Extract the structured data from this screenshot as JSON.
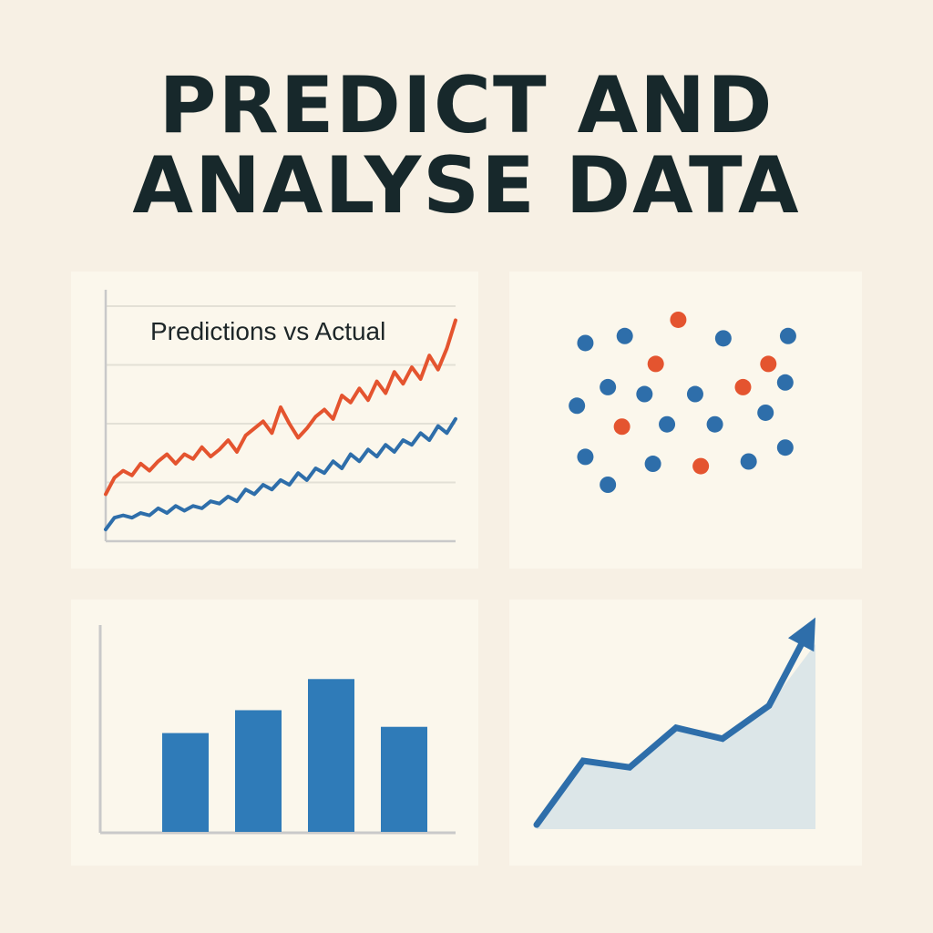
{
  "header": {
    "line1": "PREDICT AND",
    "line2": "ANALYSE DATA"
  },
  "colors": {
    "background": "#f7f0e4",
    "panel": "#fbf7ec",
    "red": "#e4542f",
    "blue": "#2e6eaa",
    "bar": "#2f7bb8",
    "area": "#dce6e8",
    "axis": "#c9c9c9",
    "grid": "#e3e0d6",
    "title": "#17282b"
  },
  "chart_data": [
    {
      "type": "line",
      "title": "Predictions vs Actual",
      "grid": true,
      "x": [
        0,
        1,
        2,
        3,
        4,
        5,
        6,
        7,
        8,
        9,
        10,
        11,
        12,
        13,
        14,
        15,
        16,
        17,
        18,
        19,
        20,
        21,
        22,
        23,
        24,
        25,
        26,
        27,
        28,
        29,
        30,
        31,
        32,
        33,
        34,
        35,
        36,
        37,
        38,
        39,
        40
      ],
      "xlim": [
        0,
        40
      ],
      "ylim": [
        0,
        100
      ],
      "series": [
        {
          "color": "#e4542f",
          "values": [
            20,
            27,
            30,
            28,
            33,
            30,
            34,
            37,
            33,
            37,
            35,
            40,
            36,
            39,
            43,
            38,
            45,
            48,
            51,
            46,
            57,
            50,
            44,
            48,
            53,
            56,
            52,
            62,
            59,
            65,
            60,
            68,
            63,
            72,
            67,
            74,
            69,
            79,
            73,
            82,
            94
          ]
        },
        {
          "color": "#2e6eaa",
          "values": [
            5,
            10,
            11,
            10,
            12,
            11,
            14,
            12,
            15,
            13,
            15,
            14,
            17,
            16,
            19,
            17,
            22,
            20,
            24,
            22,
            26,
            24,
            29,
            26,
            31,
            29,
            34,
            31,
            37,
            34,
            39,
            36,
            41,
            38,
            43,
            41,
            46,
            43,
            49,
            46,
            52
          ]
        }
      ]
    },
    {
      "type": "scatter",
      "grid": false,
      "xlim": [
        0,
        100
      ],
      "ylim": [
        0,
        100
      ],
      "series": [
        {
          "color": "#2e6eaa",
          "points": [
            [
              16,
              81
            ],
            [
              30,
              84
            ],
            [
              65,
              83
            ],
            [
              88,
              84
            ],
            [
              87,
              64
            ],
            [
              24,
              62
            ],
            [
              37,
              59
            ],
            [
              55,
              59
            ],
            [
              13,
              54
            ],
            [
              80,
              51
            ],
            [
              45,
              46
            ],
            [
              62,
              46
            ],
            [
              16,
              32
            ],
            [
              40,
              29
            ],
            [
              74,
              30
            ],
            [
              87,
              36
            ],
            [
              24,
              20
            ]
          ]
        },
        {
          "color": "#e4542f",
          "points": [
            [
              49,
              91
            ],
            [
              41,
              72
            ],
            [
              81,
              72
            ],
            [
              72,
              62
            ],
            [
              29,
              45
            ],
            [
              57,
              28
            ]
          ]
        }
      ]
    },
    {
      "type": "bar",
      "grid": false,
      "categories": [
        "",
        "",
        "",
        ""
      ],
      "values": [
        48,
        59,
        74,
        51
      ],
      "ylim": [
        0,
        100
      ]
    },
    {
      "type": "area",
      "grid": false,
      "x": [
        0,
        1,
        2,
        3,
        4,
        5,
        6
      ],
      "values": [
        2,
        31,
        28,
        46,
        41,
        56,
        96
      ],
      "ylim": [
        0,
        100
      ]
    }
  ]
}
